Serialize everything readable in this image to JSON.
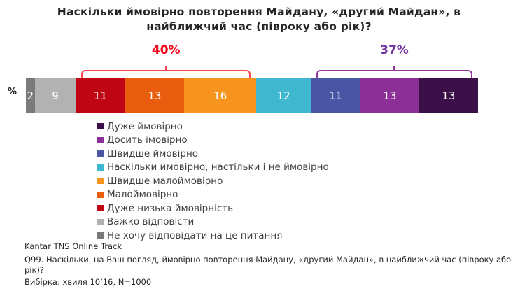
{
  "title": {
    "line1": "Наскільки ймовірно  повторення Майдану, «другий  Майдан», в",
    "line2": "найближчий  час (півроку або рік)?"
  },
  "axis_label": "%",
  "chart_data": {
    "type": "bar",
    "subtype": "stacked-horizontal-100pct",
    "unit": "%",
    "title": "Наскільки ймовірно повторення Майдану, «другий Майдан», в найближчий час (півроку або рік)?",
    "axis_label": "%",
    "segments": [
      {
        "label": "Не хочу відповідати на це питання",
        "value": 2,
        "color": "#7a7a7a"
      },
      {
        "label": "Важко відповісти",
        "value": 9,
        "color": "#b2b2b2"
      },
      {
        "label": "Дуже низька ймовірність",
        "value": 11,
        "color": "#c00515"
      },
      {
        "label": "Малоймовірно",
        "value": 13,
        "color": "#e95e0e"
      },
      {
        "label": "Швидше малоймовірно",
        "value": 16,
        "color": "#f7941d"
      },
      {
        "label": "Наскільки ймовірно, настільки і не ймовірно",
        "value": 12,
        "color": "#3fb7ce"
      },
      {
        "label": "Швидше ймовірно",
        "value": 11,
        "color": "#4a55a4"
      },
      {
        "label": "Досить імовірно",
        "value": 13,
        "color": "#8c2f96"
      },
      {
        "label": "Дуже ймовірно",
        "value": 13,
        "color": "#3b0f47"
      }
    ],
    "brackets": [
      {
        "label": "40%",
        "total": 40,
        "from": 11,
        "to": 51,
        "line_color": "#fb4651",
        "text_color": "#f20519"
      },
      {
        "label": "37%",
        "total": 37,
        "from": 63,
        "to": 100,
        "line_color": "#94389c",
        "text_color": "#7030a0"
      }
    ],
    "legend": [
      {
        "label": "Дуже ймовірно",
        "color": "#3b0f47"
      },
      {
        "label": "Досить імовірно",
        "color": "#8c2f96"
      },
      {
        "label": "Швидше ймовірно",
        "color": "#4a55a4"
      },
      {
        "label": "Наскільки ймовірно, настільки і не ймовірно",
        "color": "#3fb7ce"
      },
      {
        "label": "Швидше малоймовірно",
        "color": "#f7941d"
      },
      {
        "label": "Малоймовірно",
        "color": "#e95e0e"
      },
      {
        "label": "Дуже низька ймовірність",
        "color": "#c00515"
      },
      {
        "label": "Важко відповісти",
        "color": "#b2b2b2"
      },
      {
        "label": "Не хочу відповідати на це питання",
        "color": "#7a7a7a"
      }
    ]
  },
  "footer": {
    "source": "Kantar TNS Online Track",
    "question": "Q99. Наскільки, на Ваш погляд, ймовірно повторення Майдану, «другий Майдан», в найближчий час (півроку або рік)?",
    "sample": "Вибірка: хвиля 10’16, N=1000"
  }
}
